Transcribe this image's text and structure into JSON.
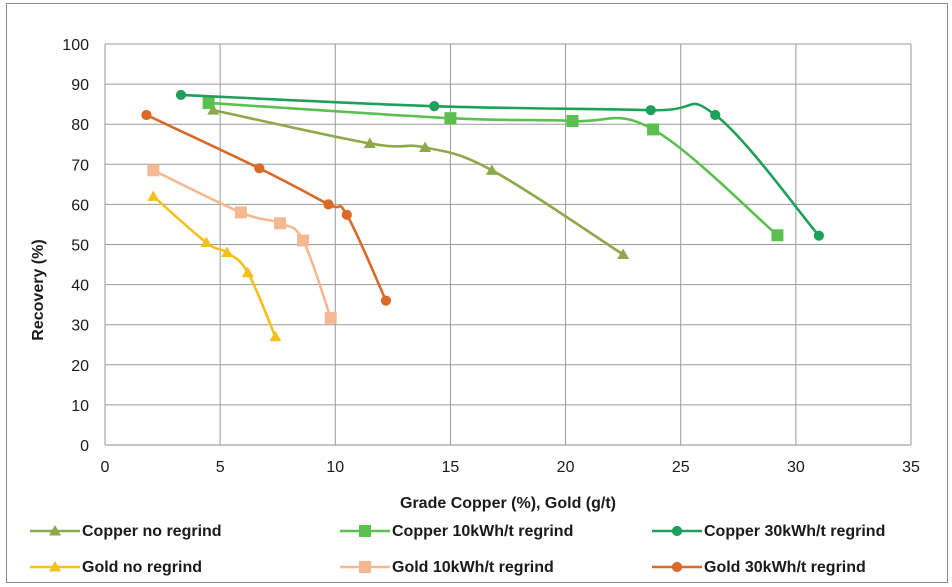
{
  "chart_data": {
    "type": "line",
    "title": "",
    "xlabel": "Grade Copper (%), Gold (g/t)",
    "ylabel": "Recovery (%)",
    "xlim": [
      0,
      35
    ],
    "ylim": [
      0,
      100
    ],
    "xticks": [
      0,
      5,
      10,
      15,
      20,
      25,
      30,
      35
    ],
    "yticks": [
      0,
      10,
      20,
      30,
      40,
      50,
      60,
      70,
      80,
      90,
      100
    ],
    "grid": true,
    "legend_position": "bottom",
    "series": [
      {
        "name": "Copper no regrind",
        "color": "#8ea84a",
        "marker": "triangle",
        "points": [
          [
            4.7,
            83.5
          ],
          [
            11.5,
            75.2
          ],
          [
            13.9,
            74.2
          ],
          [
            16.8,
            68.5
          ],
          [
            22.5,
            47.5
          ]
        ]
      },
      {
        "name": "Copper 10kWh/t regrind",
        "color": "#5bc04f",
        "marker": "square",
        "points": [
          [
            4.5,
            85.3
          ],
          [
            15.0,
            81.5
          ],
          [
            20.3,
            80.8
          ],
          [
            23.8,
            78.7
          ],
          [
            29.2,
            52.3
          ]
        ]
      },
      {
        "name": "Copper 30kWh/t regrind",
        "color": "#1ea05a",
        "marker": "circle",
        "points": [
          [
            3.3,
            87.3
          ],
          [
            14.3,
            84.5
          ],
          [
            23.7,
            83.5
          ],
          [
            26.5,
            82.3
          ],
          [
            31.0,
            52.2
          ]
        ]
      },
      {
        "name": "Gold no regrind",
        "color": "#f4c01c",
        "marker": "triangle",
        "points": [
          [
            2.1,
            62.0
          ],
          [
            4.4,
            50.5
          ],
          [
            5.3,
            48.0
          ],
          [
            6.2,
            43.0
          ],
          [
            7.4,
            27.0
          ]
        ]
      },
      {
        "name": "Gold 10kWh/t regrind",
        "color": "#f4b992",
        "marker": "square",
        "points": [
          [
            2.1,
            68.5
          ],
          [
            5.9,
            58.0
          ],
          [
            7.6,
            55.3
          ],
          [
            8.6,
            51.0
          ],
          [
            9.8,
            31.7
          ]
        ]
      },
      {
        "name": "Gold 30kWh/t regrind",
        "color": "#d96a28",
        "marker": "circle",
        "points": [
          [
            1.8,
            82.3
          ],
          [
            6.7,
            69.0
          ],
          [
            9.7,
            60.0
          ],
          [
            10.5,
            57.4
          ],
          [
            12.2,
            36.0
          ]
        ]
      }
    ]
  }
}
